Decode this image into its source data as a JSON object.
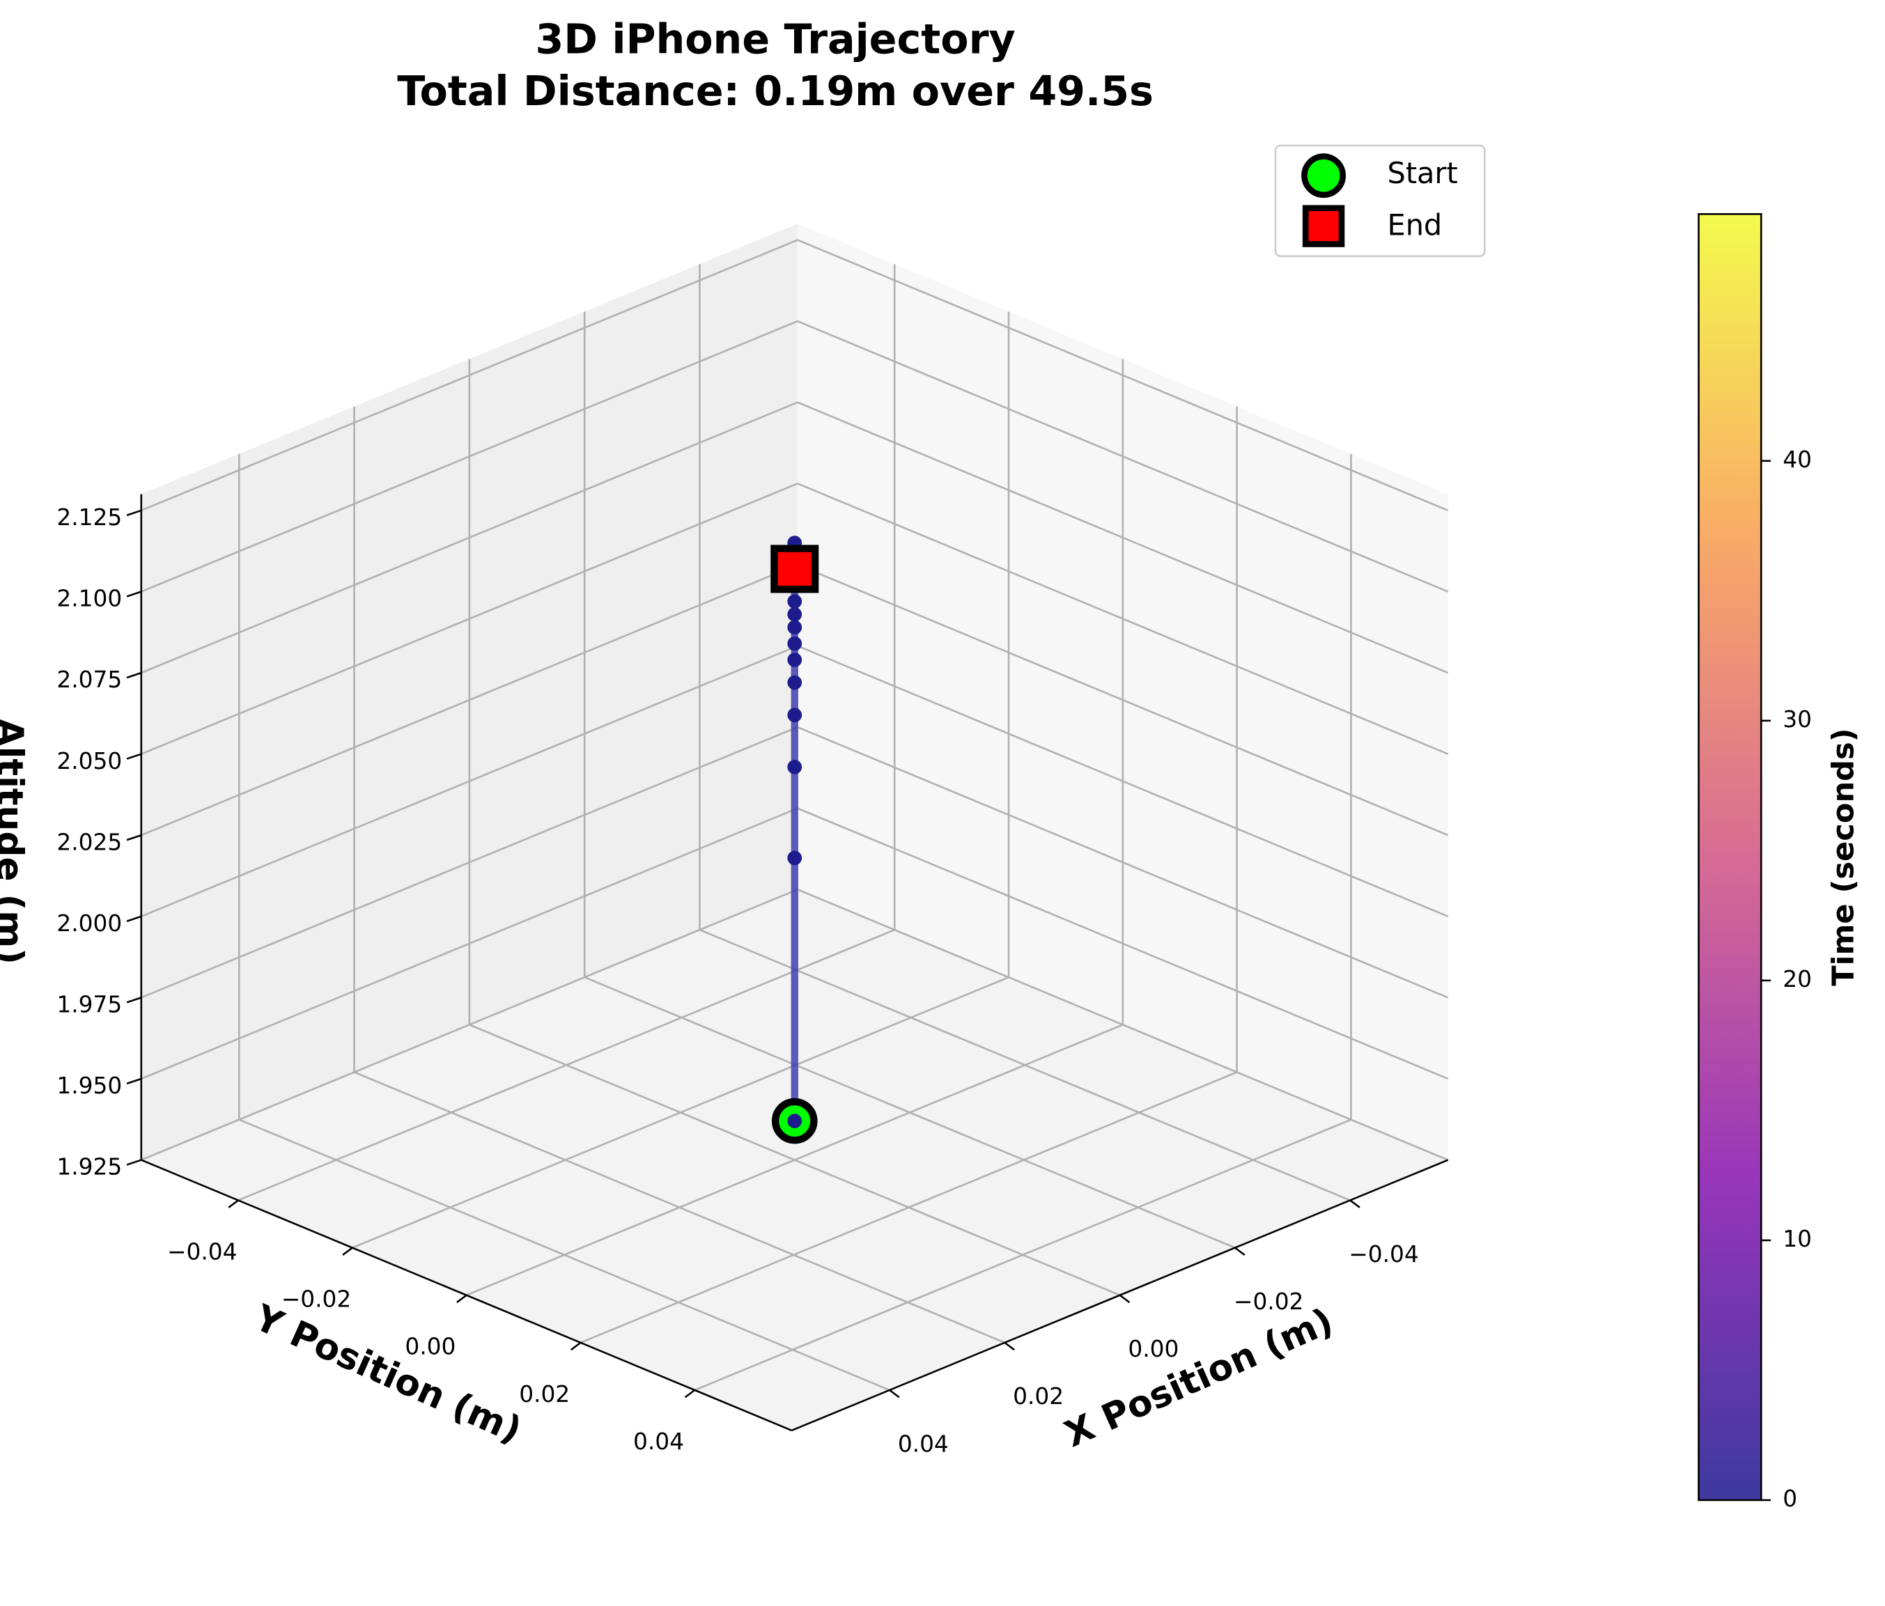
{
  "chart_data": {
    "type": "scatter3d",
    "title": "3D iPhone Trajectory",
    "subtitle": "Total Distance: 0.19m over 49.5s",
    "x_label": "X Position (m)",
    "y_label": "Y Position (m)",
    "z_label": "Altitude (m)",
    "x": [
      0,
      0,
      0,
      0,
      0,
      0,
      0,
      0,
      0,
      0,
      0,
      0,
      0,
      0,
      0,
      0,
      0
    ],
    "y": [
      0,
      0,
      0,
      0,
      0,
      0,
      0,
      0,
      0,
      0,
      0,
      0,
      0,
      0,
      0,
      0,
      0
    ],
    "z": [
      1.937,
      2.018,
      2.046,
      2.062,
      2.072,
      2.079,
      2.084,
      2.089,
      2.093,
      2.097,
      2.102,
      2.107,
      2.111,
      2.113,
      2.115,
      2.111,
      2.107
    ],
    "line_color": "#4040b0",
    "point_color": "#1c1c8c",
    "start": {
      "name": "Start",
      "color": "#00ff00"
    },
    "end": {
      "name": "End",
      "color": "#ff0000"
    },
    "xlim": [
      -0.057,
      0.057
    ],
    "ylim": [
      -0.057,
      0.057
    ],
    "zlim": [
      1.925,
      2.13
    ],
    "xticks": [
      {
        "value": -0.04,
        "label": "−0.04"
      },
      {
        "value": -0.02,
        "label": "−0.02"
      },
      {
        "value": 0,
        "label": "0.00"
      },
      0.02,
      0.04
    ],
    "yticks": [
      {
        "value": -0.04,
        "label": "−0.04"
      },
      {
        "value": -0.02,
        "label": "−0.02"
      },
      {
        "value": 0,
        "label": "0.00"
      },
      0.02,
      0.04
    ],
    "zticks": [
      1.925,
      {
        "value": 1.95,
        "label": "1.950"
      },
      1.975,
      {
        "value": 2.0,
        "label": "2.000"
      },
      2.025,
      {
        "value": 2.05,
        "label": "2.050"
      },
      2.075,
      {
        "value": 2.1,
        "label": "2.100"
      },
      2.125
    ],
    "grid": true,
    "legend": "upper right",
    "colorbar": {
      "label": "Time (seconds)",
      "lim": [
        0,
        49.5
      ],
      "ticks": [
        0,
        10,
        20,
        30,
        40
      ],
      "colors": [
        "#0d0887",
        "#7e03a8",
        "#cc4778",
        "#f89540",
        "#f0f921"
      ]
    }
  }
}
